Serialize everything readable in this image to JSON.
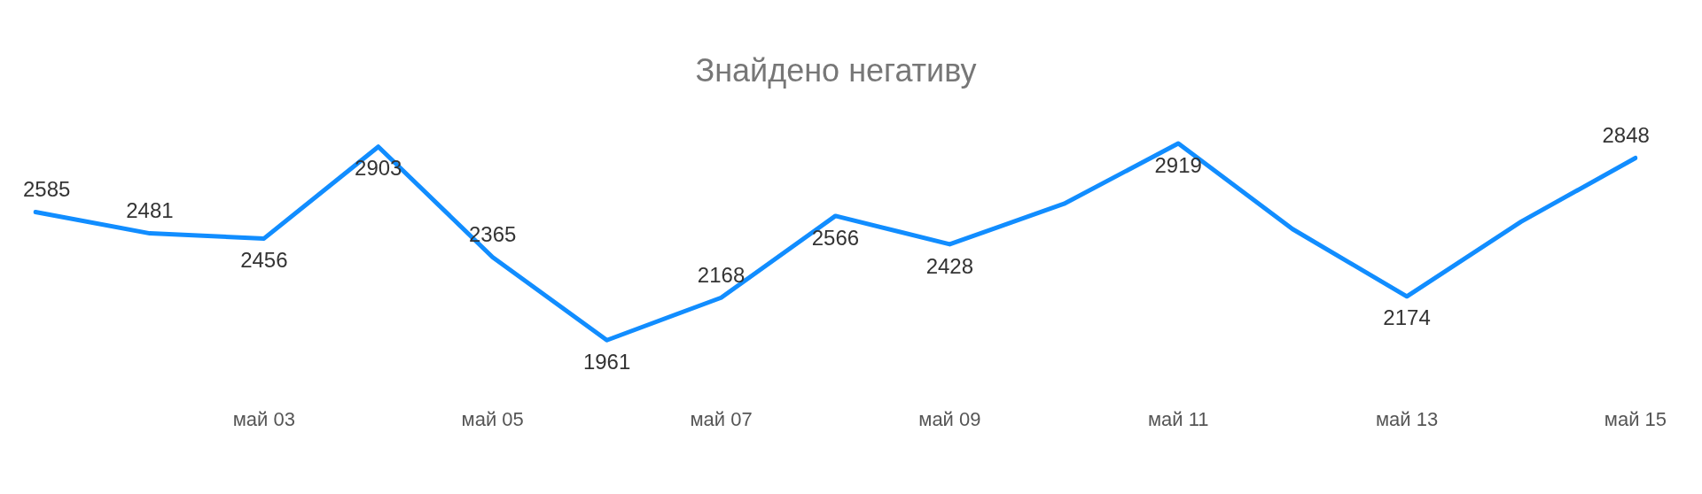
{
  "chart_data": {
    "type": "line",
    "title": "Знайдено негативу",
    "categories": [
      null,
      null,
      "май 03",
      null,
      "май 05",
      null,
      "май 07",
      null,
      "май 09",
      null,
      "май 11",
      null,
      "май 13",
      null,
      "май 15"
    ],
    "series": [
      {
        "color": "#118dff",
        "values": [
          2585,
          2481,
          2456,
          2903,
          2365,
          1961,
          2168,
          2566,
          2428,
          2625,
          2919,
          2502,
          2174,
          2538,
          2848
        ],
        "value_labels": [
          "2585",
          "2481",
          "2456",
          "2903",
          "2365",
          "1961",
          "2168",
          "2566",
          "2428",
          null,
          "2919",
          null,
          "2174",
          null,
          "2848"
        ]
      }
    ],
    "grid": false,
    "legend": false,
    "marker": "none",
    "line_style": "solid"
  }
}
